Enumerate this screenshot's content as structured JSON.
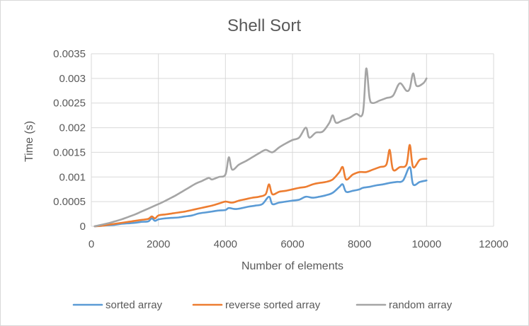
{
  "chart_data": {
    "type": "line",
    "title": "Shell Sort",
    "xlabel": "Number of elements",
    "ylabel": "Time (s)",
    "xlim": [
      0,
      12000
    ],
    "ylim": [
      0,
      0.0035
    ],
    "xticks": [
      "0",
      "2000",
      "4000",
      "6000",
      "8000",
      "10000",
      "12000"
    ],
    "yticks": [
      "0",
      "0.0005",
      "0.001",
      "0.0015",
      "0.002",
      "0.0025",
      "0.003",
      "0.0035"
    ],
    "grid": true,
    "legend_position": "bottom",
    "series": [
      {
        "name": "sorted array",
        "color": "#5b9bd5",
        "points": [
          [
            100,
            0
          ],
          [
            300,
            1e-05
          ],
          [
            500,
            2e-05
          ],
          [
            700,
            3e-05
          ],
          [
            900,
            5e-05
          ],
          [
            1100,
            6e-05
          ],
          [
            1300,
            7e-05
          ],
          [
            1500,
            9e-05
          ],
          [
            1700,
            0.0001
          ],
          [
            1800,
            0.00016
          ],
          [
            1900,
            0.00011
          ],
          [
            2000,
            0.00014
          ],
          [
            2200,
            0.00016
          ],
          [
            2400,
            0.00017
          ],
          [
            2600,
            0.00018
          ],
          [
            2800,
            0.0002
          ],
          [
            3000,
            0.00022
          ],
          [
            3200,
            0.00026
          ],
          [
            3400,
            0.00028
          ],
          [
            3600,
            0.0003
          ],
          [
            3800,
            0.00032
          ],
          [
            4000,
            0.00033
          ],
          [
            4100,
            0.00037
          ],
          [
            4300,
            0.00035
          ],
          [
            4500,
            0.00037
          ],
          [
            4700,
            0.0004
          ],
          [
            4900,
            0.00042
          ],
          [
            5100,
            0.00045
          ],
          [
            5300,
            0.0006
          ],
          [
            5400,
            0.00045
          ],
          [
            5600,
            0.00048
          ],
          [
            5800,
            0.0005
          ],
          [
            6000,
            0.00052
          ],
          [
            6200,
            0.00054
          ],
          [
            6400,
            0.0006
          ],
          [
            6600,
            0.00058
          ],
          [
            6800,
            0.0006
          ],
          [
            7000,
            0.00063
          ],
          [
            7200,
            0.00068
          ],
          [
            7400,
            0.0008
          ],
          [
            7500,
            0.00085
          ],
          [
            7600,
            0.0007
          ],
          [
            7800,
            0.00072
          ],
          [
            8000,
            0.00075
          ],
          [
            8100,
            0.00078
          ],
          [
            8300,
            0.0008
          ],
          [
            8500,
            0.00083
          ],
          [
            8700,
            0.00085
          ],
          [
            8900,
            0.00088
          ],
          [
            9100,
            0.0009
          ],
          [
            9300,
            0.00093
          ],
          [
            9500,
            0.0012
          ],
          [
            9600,
            0.00085
          ],
          [
            9800,
            0.0009
          ],
          [
            10000,
            0.00093
          ]
        ]
      },
      {
        "name": "reverse sorted array",
        "color": "#ed7d31",
        "points": [
          [
            100,
            0
          ],
          [
            300,
            1e-05
          ],
          [
            500,
            3e-05
          ],
          [
            700,
            5e-05
          ],
          [
            900,
            7e-05
          ],
          [
            1100,
            9e-05
          ],
          [
            1300,
            0.00011
          ],
          [
            1500,
            0.00013
          ],
          [
            1700,
            0.00015
          ],
          [
            1800,
            0.0002
          ],
          [
            1900,
            0.00016
          ],
          [
            2000,
            0.00022
          ],
          [
            2200,
            0.00024
          ],
          [
            2400,
            0.00026
          ],
          [
            2600,
            0.00028
          ],
          [
            2800,
            0.0003
          ],
          [
            3000,
            0.00033
          ],
          [
            3200,
            0.00036
          ],
          [
            3400,
            0.00039
          ],
          [
            3600,
            0.00042
          ],
          [
            3800,
            0.00046
          ],
          [
            4000,
            0.0005
          ],
          [
            4200,
            0.00048
          ],
          [
            4400,
            0.00052
          ],
          [
            4600,
            0.00055
          ],
          [
            4800,
            0.00058
          ],
          [
            5000,
            0.0006
          ],
          [
            5200,
            0.00065
          ],
          [
            5300,
            0.00085
          ],
          [
            5400,
            0.00065
          ],
          [
            5600,
            0.0007
          ],
          [
            5800,
            0.00072
          ],
          [
            6000,
            0.00075
          ],
          [
            6200,
            0.00078
          ],
          [
            6400,
            0.0008
          ],
          [
            6600,
            0.00085
          ],
          [
            6800,
            0.00088
          ],
          [
            7000,
            0.0009
          ],
          [
            7200,
            0.00095
          ],
          [
            7400,
            0.0011
          ],
          [
            7500,
            0.0012
          ],
          [
            7600,
            0.00095
          ],
          [
            7800,
            0.00105
          ],
          [
            8000,
            0.0011
          ],
          [
            8200,
            0.0011
          ],
          [
            8400,
            0.00115
          ],
          [
            8600,
            0.0012
          ],
          [
            8800,
            0.00125
          ],
          [
            8900,
            0.00155
          ],
          [
            9000,
            0.00115
          ],
          [
            9200,
            0.0012
          ],
          [
            9400,
            0.00125
          ],
          [
            9500,
            0.00165
          ],
          [
            9600,
            0.0012
          ],
          [
            9800,
            0.00135
          ],
          [
            10000,
            0.00137
          ]
        ]
      },
      {
        "name": "random array",
        "color": "#a5a5a5",
        "points": [
          [
            100,
            0
          ],
          [
            300,
            3e-05
          ],
          [
            500,
            6e-05
          ],
          [
            700,
            0.0001
          ],
          [
            900,
            0.00014
          ],
          [
            1100,
            0.00019
          ],
          [
            1300,
            0.00024
          ],
          [
            1500,
            0.0003
          ],
          [
            1700,
            0.00036
          ],
          [
            1900,
            0.00042
          ],
          [
            2100,
            0.00048
          ],
          [
            2300,
            0.00055
          ],
          [
            2500,
            0.00062
          ],
          [
            2700,
            0.0007
          ],
          [
            2900,
            0.00078
          ],
          [
            3100,
            0.00086
          ],
          [
            3300,
            0.00092
          ],
          [
            3500,
            0.00098
          ],
          [
            3600,
            0.00095
          ],
          [
            3800,
            0.001
          ],
          [
            4000,
            0.00105
          ],
          [
            4100,
            0.0014
          ],
          [
            4200,
            0.00115
          ],
          [
            4400,
            0.00125
          ],
          [
            4600,
            0.00132
          ],
          [
            4800,
            0.0014
          ],
          [
            5000,
            0.00148
          ],
          [
            5200,
            0.00155
          ],
          [
            5400,
            0.0015
          ],
          [
            5600,
            0.0016
          ],
          [
            5800,
            0.00168
          ],
          [
            6000,
            0.00175
          ],
          [
            6200,
            0.0018
          ],
          [
            6400,
            0.002
          ],
          [
            6500,
            0.0018
          ],
          [
            6700,
            0.0019
          ],
          [
            6900,
            0.00192
          ],
          [
            7100,
            0.0021
          ],
          [
            7200,
            0.00225
          ],
          [
            7300,
            0.0021
          ],
          [
            7500,
            0.00215
          ],
          [
            7700,
            0.0022
          ],
          [
            7900,
            0.00228
          ],
          [
            8100,
            0.0023
          ],
          [
            8200,
            0.0032
          ],
          [
            8300,
            0.0026
          ],
          [
            8400,
            0.0025
          ],
          [
            8600,
            0.00255
          ],
          [
            8800,
            0.0026
          ],
          [
            9000,
            0.00265
          ],
          [
            9200,
            0.0029
          ],
          [
            9400,
            0.00275
          ],
          [
            9500,
            0.0028
          ],
          [
            9600,
            0.0031
          ],
          [
            9700,
            0.00285
          ],
          [
            9900,
            0.0029
          ],
          [
            10000,
            0.003
          ]
        ]
      }
    ]
  }
}
